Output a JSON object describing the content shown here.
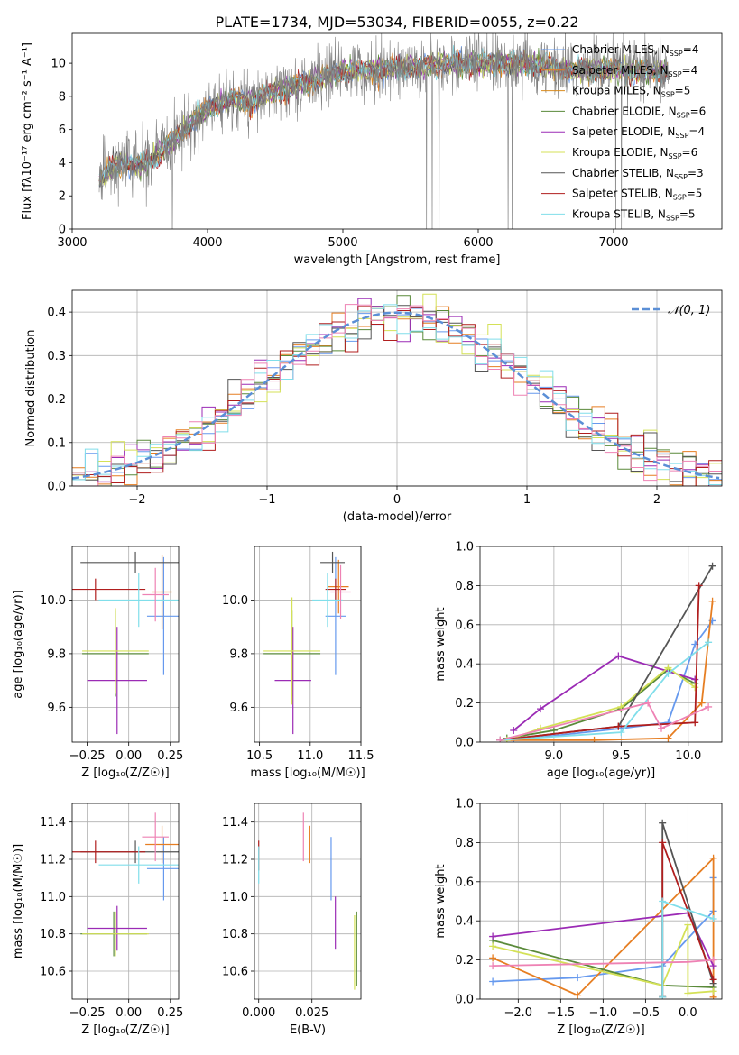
{
  "title": "PLATE=1734, MJD=53034, FIBERID=0055, z=0.22",
  "colors": {
    "Chabrier MILES": "#6699ee",
    "Salpeter MILES": "#e67e22",
    "Kroupa MILES": "#d98c1f",
    "Chabrier ELODIE": "#5a8a3a",
    "Salpeter ELODIE": "#9b2bb5",
    "Kroupa ELODIE": "#d4e157",
    "Chabrier STELIB": "#555555",
    "Salpeter STELIB": "#b01e1e",
    "Kroupa STELIB": "#80deea",
    "Pink": "#ee82b4",
    "Normal": "#5b8fd6"
  },
  "chart_data": [
    {
      "id": "spectrum",
      "type": "line",
      "xlabel": "wavelength [Angstrom, rest frame]",
      "ylabel": "Flux [fλ10⁻¹⁷ erg cm⁻² s⁻¹ A⁻¹]",
      "xlim": [
        3000,
        7800
      ],
      "ylim": [
        0,
        11.8
      ],
      "xticks": [
        "3000",
        "4000",
        "5000",
        "6000",
        "7000"
      ],
      "yticks": [
        "0",
        "2",
        "4",
        "6",
        "8",
        "10"
      ],
      "legend": [
        {
          "label": "Chabrier MILES, N",
          "sub": "SSP",
          "tail": "=4",
          "color": "#6699ee"
        },
        {
          "label": "Salpeter MILES, N",
          "sub": "SSP",
          "tail": "=4",
          "color": "#e67e22"
        },
        {
          "label": "Kroupa MILES, N",
          "sub": "SSP",
          "tail": "=5",
          "color": "#d98c1f"
        },
        {
          "label": "Chabrier ELODIE, N",
          "sub": "SSP",
          "tail": "=6",
          "color": "#5a8a3a"
        },
        {
          "label": "Salpeter ELODIE, N",
          "sub": "SSP",
          "tail": "=4",
          "color": "#9b2bb5"
        },
        {
          "label": "Kroupa ELODIE, N",
          "sub": "SSP",
          "tail": "=6",
          "color": "#d4e157"
        },
        {
          "label": "Chabrier STELIB, N",
          "sub": "SSP",
          "tail": "=3",
          "color": "#555555"
        },
        {
          "label": "Salpeter STELIB, N",
          "sub": "SSP",
          "tail": "=5",
          "color": "#b01e1e"
        },
        {
          "label": "Kroupa STELIB, N",
          "sub": "SSP",
          "tail": "=5",
          "color": "#80deea"
        }
      ],
      "trend": {
        "x": [
          3200,
          3300,
          3400,
          3500,
          3600,
          3700,
          3800,
          3900,
          4000,
          4100,
          4200,
          4300,
          4400,
          4500,
          4600,
          4800,
          5000,
          5200,
          5400,
          5600,
          5800,
          6000,
          6200,
          6400,
          6600,
          6800,
          7000,
          7200,
          7400
        ],
        "y": [
          3.0,
          3.8,
          4.0,
          3.9,
          4.2,
          5.0,
          5.8,
          6.5,
          7.2,
          7.6,
          7.8,
          7.6,
          7.9,
          8.3,
          8.5,
          9.0,
          9.5,
          9.6,
          9.7,
          9.8,
          10.0,
          10.0,
          10.0,
          9.9,
          9.7,
          9.6,
          9.6,
          9.5,
          9.5
        ]
      }
    },
    {
      "id": "residuals",
      "type": "line",
      "xlabel": "(data-model)/error",
      "ylabel": "Normed distribution",
      "xlim": [
        -2.5,
        2.5
      ],
      "ylim": [
        0,
        0.45
      ],
      "xticks": [
        "−2",
        "−1",
        "0",
        "1",
        "2"
      ],
      "yticks": [
        "0.0",
        "0.1",
        "0.2",
        "0.3",
        "0.4"
      ],
      "legend_label": "𝒩(0, 1)"
    },
    {
      "id": "age-vs-Z",
      "type": "scatter",
      "xlabel": "Z [log₁₀(Z/Z☉)]",
      "ylabel": "age  [log₁₀(age/yr)]",
      "xlim": [
        -0.34,
        0.3
      ],
      "ylim": [
        9.47,
        10.2
      ],
      "xticks": [
        "−0.25",
        "0.00",
        "0.25"
      ],
      "yticks": [
        "9.6",
        "9.8",
        "10.0"
      ],
      "points": [
        {
          "x": 0.21,
          "y": 9.94,
          "xerr": 0.1,
          "yerr": 0.22,
          "color": "#6699ee"
        },
        {
          "x": 0.2,
          "y": 10.03,
          "xerr": 0.06,
          "yerr": 0.14,
          "color": "#e67e22"
        },
        {
          "x": -0.08,
          "y": 9.8,
          "xerr": 0.2,
          "yerr": 0.16,
          "color": "#5a8a3a"
        },
        {
          "x": -0.07,
          "y": 9.7,
          "xerr": 0.18,
          "yerr": 0.2,
          "color": "#9b2bb5"
        },
        {
          "x": -0.08,
          "y": 9.81,
          "xerr": 0.2,
          "yerr": 0.16,
          "color": "#d4e157"
        },
        {
          "x": 0.04,
          "y": 10.14,
          "xerr": 0.33,
          "yerr": 0.04,
          "color": "#555555"
        },
        {
          "x": -0.2,
          "y": 10.04,
          "xerr": 0.3,
          "yerr": 0.04,
          "color": "#b01e1e"
        },
        {
          "x": 0.06,
          "y": 10.0,
          "xerr": 0.24,
          "yerr": 0.1,
          "color": "#80deea"
        },
        {
          "x": 0.16,
          "y": 10.02,
          "xerr": 0.08,
          "yerr": 0.1,
          "color": "#ee82b4"
        }
      ]
    },
    {
      "id": "age-vs-mass",
      "type": "scatter",
      "xlabel": "mass [log₁₀(M/M☉)]",
      "ylabel": "",
      "xlim": [
        10.45,
        11.5
      ],
      "ylim": [
        9.47,
        10.2
      ],
      "xticks": [
        "10.5",
        "11.0",
        "11.5"
      ],
      "yticks": [
        "9.6",
        "9.8",
        "10.0"
      ],
      "points": [
        {
          "x": 11.25,
          "y": 9.94,
          "xerr": 0.1,
          "yerr": 0.22,
          "color": "#6699ee"
        },
        {
          "x": 11.28,
          "y": 10.05,
          "xerr": 0.1,
          "yerr": 0.1,
          "color": "#e67e22"
        },
        {
          "x": 10.82,
          "y": 9.8,
          "xerr": 0.28,
          "yerr": 0.16,
          "color": "#5a8a3a"
        },
        {
          "x": 10.83,
          "y": 9.7,
          "xerr": 0.18,
          "yerr": 0.2,
          "color": "#9b2bb5"
        },
        {
          "x": 10.82,
          "y": 9.81,
          "xerr": 0.28,
          "yerr": 0.2,
          "color": "#d4e157"
        },
        {
          "x": 11.22,
          "y": 10.14,
          "xerr": 0.12,
          "yerr": 0.04,
          "color": "#555555"
        },
        {
          "x": 11.25,
          "y": 10.04,
          "xerr": 0.1,
          "yerr": 0.04,
          "color": "#b01e1e"
        },
        {
          "x": 11.17,
          "y": 10.0,
          "xerr": 0.15,
          "yerr": 0.1,
          "color": "#80deea"
        },
        {
          "x": 11.3,
          "y": 10.03,
          "xerr": 0.1,
          "yerr": 0.1,
          "color": "#ee82b4"
        }
      ]
    },
    {
      "id": "massweight-vs-age",
      "type": "line",
      "xlabel": "age  [log₁₀(age/yr)]",
      "ylabel": "mass weight",
      "xlim": [
        8.45,
        10.25
      ],
      "ylim": [
        0,
        1.0
      ],
      "xticks": [
        "9.0",
        "9.5",
        "10.0"
      ],
      "yticks": [
        "0.0",
        "0.2",
        "0.4",
        "0.6",
        "0.8",
        "1.0"
      ],
      "series": [
        {
          "color": "#6699ee",
          "x": [
            8.7,
            9.5,
            9.85,
            10.05,
            10.18
          ],
          "y": [
            0.01,
            0.07,
            0.1,
            0.5,
            0.62
          ]
        },
        {
          "color": "#e67e22",
          "x": [
            8.6,
            9.3,
            9.85,
            10.1,
            10.18
          ],
          "y": [
            0.01,
            0.01,
            0.02,
            0.2,
            0.72
          ]
        },
        {
          "color": "#5a8a3a",
          "x": [
            8.65,
            9.0,
            9.5,
            9.85,
            10.05
          ],
          "y": [
            0.02,
            0.06,
            0.17,
            0.37,
            0.3
          ]
        },
        {
          "color": "#9b2bb5",
          "x": [
            8.7,
            8.9,
            9.48,
            10.05
          ],
          "y": [
            0.06,
            0.17,
            0.44,
            0.32
          ]
        },
        {
          "color": "#d4e157",
          "x": [
            8.65,
            8.9,
            9.5,
            9.85,
            10.05
          ],
          "y": [
            0.01,
            0.07,
            0.18,
            0.38,
            0.28
          ]
        },
        {
          "color": "#555555",
          "x": [
            8.6,
            9.48,
            10.18
          ],
          "y": [
            0.01,
            0.08,
            0.9
          ]
        },
        {
          "color": "#b01e1e",
          "x": [
            8.6,
            9.48,
            10.05,
            10.08
          ],
          "y": [
            0.01,
            0.08,
            0.1,
            0.8
          ]
        },
        {
          "color": "#80deea",
          "x": [
            8.6,
            9.5,
            9.85,
            10.15
          ],
          "y": [
            0.01,
            0.05,
            0.35,
            0.51
          ]
        },
        {
          "color": "#ee82b4",
          "x": [
            8.6,
            9.7,
            9.8,
            10.15
          ],
          "y": [
            0.01,
            0.2,
            0.07,
            0.18
          ]
        }
      ]
    },
    {
      "id": "mass-vs-Z",
      "type": "scatter",
      "xlabel": "Z [log₁₀(Z/Z☉)]",
      "ylabel": "mass [log₁₀(M/M☉)]",
      "xlim": [
        -0.34,
        0.3
      ],
      "ylim": [
        10.45,
        11.5
      ],
      "xticks": [
        "−0.25",
        "0.00",
        "0.25"
      ],
      "yticks": [
        "10.6",
        "10.8",
        "11.0",
        "11.2",
        "11.4"
      ],
      "points": [
        {
          "x": 0.21,
          "y": 11.15,
          "xerr": 0.1,
          "yerr": 0.17,
          "color": "#6699ee"
        },
        {
          "x": 0.2,
          "y": 11.28,
          "xerr": 0.1,
          "yerr": 0.1,
          "color": "#e67e22"
        },
        {
          "x": -0.09,
          "y": 10.8,
          "xerr": 0.2,
          "yerr": 0.12,
          "color": "#5a8a3a"
        },
        {
          "x": -0.07,
          "y": 10.83,
          "xerr": 0.18,
          "yerr": 0.12,
          "color": "#9b2bb5"
        },
        {
          "x": -0.08,
          "y": 10.8,
          "xerr": 0.2,
          "yerr": 0.12,
          "color": "#d4e157"
        },
        {
          "x": 0.04,
          "y": 11.24,
          "xerr": 0.33,
          "yerr": 0.06,
          "color": "#555555"
        },
        {
          "x": -0.2,
          "y": 11.24,
          "xerr": 0.3,
          "yerr": 0.06,
          "color": "#b01e1e"
        },
        {
          "x": 0.06,
          "y": 11.17,
          "xerr": 0.24,
          "yerr": 0.1,
          "color": "#80deea"
        },
        {
          "x": 0.16,
          "y": 11.32,
          "xerr": 0.08,
          "yerr": 0.13,
          "color": "#ee82b4"
        }
      ]
    },
    {
      "id": "mass-vs-ebv",
      "type": "scatter",
      "xlabel": "E(B-V)",
      "ylabel": "",
      "xlim": [
        -0.002,
        0.048
      ],
      "ylim": [
        10.45,
        11.5
      ],
      "xticks": [
        "0.000",
        "0.025"
      ],
      "yticks": [
        "10.6",
        "10.8",
        "11.0",
        "11.2",
        "11.4"
      ],
      "points": [
        {
          "x": 0.0,
          "y": 11.22,
          "xerr": 0,
          "yerr": 0.08,
          "color": "#b01e1e"
        },
        {
          "x": 0.0,
          "y": 11.17,
          "xerr": 0,
          "yerr": 0.1,
          "color": "#80deea"
        },
        {
          "x": 0.021,
          "y": 11.32,
          "xerr": 0,
          "yerr": 0.13,
          "color": "#ee82b4"
        },
        {
          "x": 0.024,
          "y": 11.28,
          "xerr": 0,
          "yerr": 0.1,
          "color": "#e67e22"
        },
        {
          "x": 0.034,
          "y": 11.15,
          "xerr": 0,
          "yerr": 0.17,
          "color": "#6699ee"
        },
        {
          "x": 0.036,
          "y": 10.86,
          "xerr": 0,
          "yerr": 0.14,
          "color": "#9b2bb5"
        },
        {
          "x": 0.045,
          "y": 10.7,
          "xerr": 0,
          "yerr": 0.2,
          "color": "#d4e157"
        },
        {
          "x": 0.046,
          "y": 10.72,
          "xerr": 0,
          "yerr": 0.2,
          "color": "#5a8a3a"
        }
      ]
    },
    {
      "id": "massweight-vs-Z",
      "type": "line",
      "xlabel": "Z [log₁₀(Z/Z☉)]",
      "ylabel": "mass weight",
      "xlim": [
        -2.45,
        0.4
      ],
      "ylim": [
        0,
        1.0
      ],
      "xticks": [
        "−2.0",
        "−1.5",
        "−1.0",
        "−0.5",
        "0.0"
      ],
      "yticks": [
        "0.0",
        "0.2",
        "0.4",
        "0.6",
        "0.8",
        "1.0"
      ],
      "series": [
        {
          "color": "#6699ee",
          "x": [
            -2.3,
            -1.3,
            -0.3,
            0.3,
            0.3
          ],
          "y": [
            0.09,
            0.11,
            0.17,
            0.45,
            0.62
          ]
        },
        {
          "color": "#e67e22",
          "x": [
            -2.3,
            -1.3,
            0.3,
            0.3
          ],
          "y": [
            0.21,
            0.02,
            0.72,
            0.01
          ]
        },
        {
          "color": "#5a8a3a",
          "x": [
            -2.3,
            -0.3,
            0.3
          ],
          "y": [
            0.3,
            0.07,
            0.06
          ]
        },
        {
          "color": "#9b2bb5",
          "x": [
            -2.3,
            0.0,
            0.3
          ],
          "y": [
            0.32,
            0.44,
            0.17
          ]
        },
        {
          "color": "#d4e157",
          "x": [
            -2.3,
            -0.3,
            0.0,
            0.0,
            0.3
          ],
          "y": [
            0.27,
            0.07,
            0.38,
            0.03,
            0.04
          ]
        },
        {
          "color": "#555555",
          "x": [
            -0.3,
            -0.3,
            0.3
          ],
          "y": [
            0.02,
            0.9,
            0.08
          ]
        },
        {
          "color": "#b01e1e",
          "x": [
            -0.3,
            -0.3,
            0.3
          ],
          "y": [
            0.01,
            0.8,
            0.1
          ]
        },
        {
          "color": "#80deea",
          "x": [
            -0.3,
            -0.3,
            0.3
          ],
          "y": [
            0.01,
            0.5,
            0.41
          ]
        },
        {
          "color": "#ee82b4",
          "x": [
            -2.3,
            0.0,
            0.3
          ],
          "y": [
            0.17,
            0.19,
            0.2
          ]
        }
      ]
    }
  ]
}
